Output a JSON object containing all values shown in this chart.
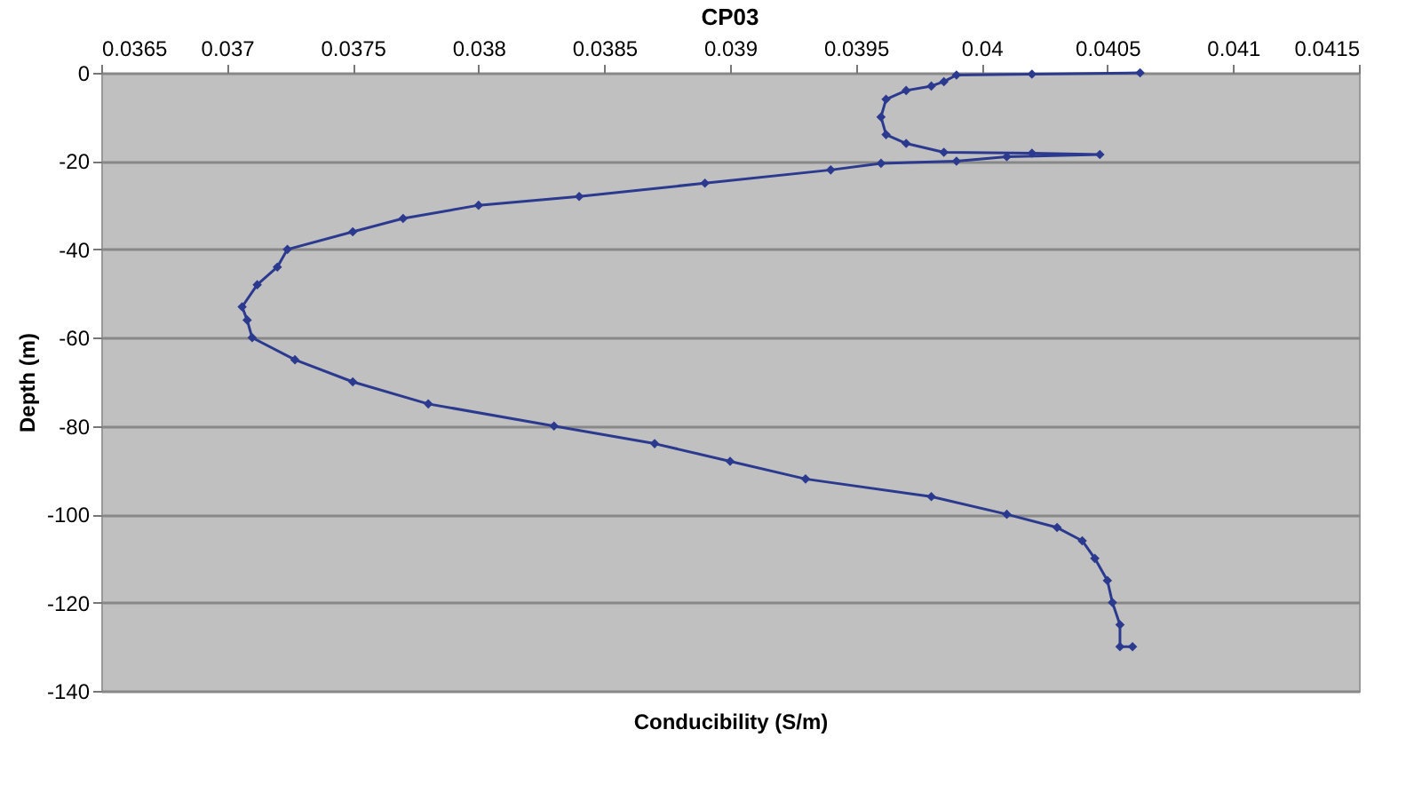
{
  "chart_data": {
    "type": "line",
    "title": "CP03",
    "xlabel": "Conducibility (S/m)",
    "ylabel": "Depth (m)",
    "xlim": [
      0.0365,
      0.0415
    ],
    "xticks": [
      0.0365,
      0.037,
      0.0375,
      0.038,
      0.0385,
      0.039,
      0.0395,
      0.04,
      0.0405,
      0.041,
      0.0415
    ],
    "ylim": [
      -140,
      0
    ],
    "yticks": [
      -140,
      -120,
      -100,
      -80,
      -60,
      -40,
      -20,
      0
    ],
    "grid": "y",
    "marker": "diamond",
    "series": [
      {
        "color": "#2b3a8f",
        "x": [
          0.04063,
          0.0402,
          0.0399,
          0.03985,
          0.0398,
          0.0397,
          0.03962,
          0.0396,
          0.03962,
          0.0397,
          0.03985,
          0.0402,
          0.04047,
          0.0401,
          0.0399,
          0.0396,
          0.0394,
          0.0389,
          0.0384,
          0.038,
          0.0377,
          0.0375,
          0.03724,
          0.0372,
          0.03712,
          0.03706,
          0.03708,
          0.0371,
          0.03727,
          0.0375,
          0.0378,
          0.0383,
          0.0387,
          0.039,
          0.0393,
          0.0398,
          0.0401,
          0.0403,
          0.0404,
          0.04045,
          0.0405,
          0.04052,
          0.04055,
          0.04055,
          0.0406
        ],
        "values": [
          0,
          -0.3,
          -0.5,
          -2,
          -3,
          -4,
          -6,
          -10,
          -14,
          -16,
          -18,
          -18.2,
          -18.5,
          -19,
          -20,
          -20.5,
          -22,
          -25,
          -28,
          -30,
          -33,
          -36,
          -40,
          -44,
          -48,
          -53,
          -56,
          -60,
          -65,
          -70,
          -75,
          -80,
          -84,
          -88,
          -92,
          -96,
          -100,
          -103,
          -106,
          -110,
          -115,
          -120,
          -125,
          -130,
          -130
        ]
      }
    ]
  }
}
